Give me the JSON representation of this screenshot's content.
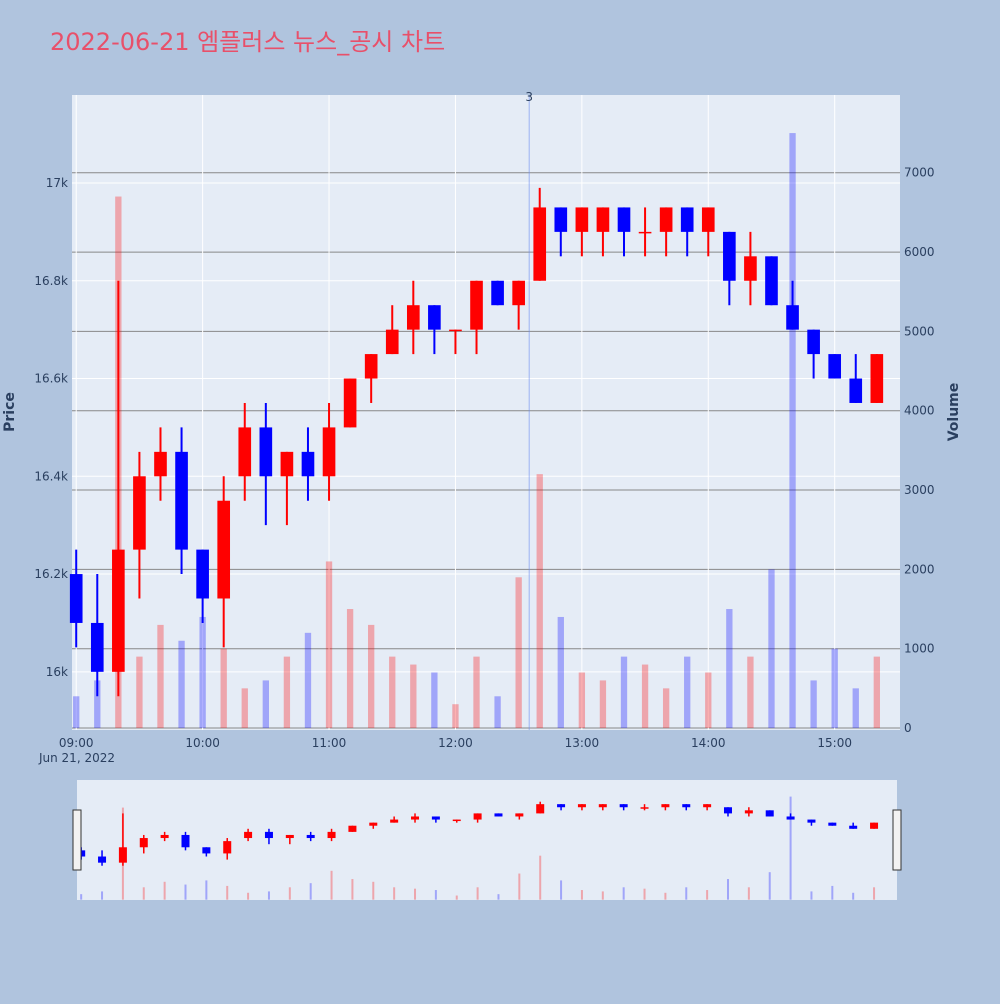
{
  "chart_data": {
    "type": "candlestick",
    "title": "2022-06-21 엠플러스 뉴스_공시 차트",
    "y_label": "Price",
    "y2_label": "Volume",
    "increasing_color": "#ff0000",
    "decreasing_color": "#0000ff",
    "x": [
      "09:00",
      "09:10",
      "09:20",
      "09:30",
      "09:40",
      "09:50",
      "10:00",
      "10:10",
      "10:20",
      "10:30",
      "10:40",
      "10:50",
      "11:00",
      "11:10",
      "11:20",
      "11:30",
      "11:40",
      "11:50",
      "12:00",
      "12:10",
      "12:20",
      "12:30",
      "12:40",
      "12:50",
      "13:00",
      "13:10",
      "13:20",
      "13:30",
      "13:40",
      "13:50",
      "14:00",
      "14:10",
      "14:20",
      "14:30",
      "14:40",
      "14:50",
      "15:00",
      "15:10",
      "15:20"
    ],
    "open": [
      16200,
      16100,
      16000,
      16250,
      16400,
      16450,
      16250,
      16150,
      16400,
      16500,
      16400,
      16450,
      16400,
      16500,
      16600,
      16650,
      16700,
      16750,
      16700,
      16700,
      16800,
      16750,
      16800,
      16950,
      16900,
      16900,
      16950,
      16900,
      16900,
      16950,
      16900,
      16900,
      16800,
      16850,
      16750,
      16700,
      16650,
      16600,
      16550
    ],
    "high": [
      16250,
      16200,
      16800,
      16450,
      16500,
      16500,
      16250,
      16400,
      16550,
      16550,
      16450,
      16500,
      16550,
      16600,
      16650,
      16750,
      16800,
      16750,
      16700,
      16800,
      16800,
      16800,
      16990,
      16950,
      16950,
      16950,
      16950,
      16950,
      16950,
      16950,
      16950,
      16900,
      16900,
      16850,
      16800,
      16700,
      16650,
      16650,
      16650
    ],
    "low": [
      16050,
      15950,
      15950,
      16150,
      16350,
      16200,
      16100,
      16050,
      16350,
      16300,
      16300,
      16350,
      16350,
      16500,
      16550,
      16650,
      16650,
      16650,
      16650,
      16650,
      16750,
      16700,
      16800,
      16850,
      16850,
      16850,
      16850,
      16850,
      16850,
      16850,
      16850,
      16750,
      16750,
      16750,
      16700,
      16600,
      16600,
      16550,
      16550
    ],
    "close": [
      16100,
      16000,
      16250,
      16400,
      16450,
      16250,
      16150,
      16350,
      16500,
      16400,
      16450,
      16400,
      16500,
      16600,
      16650,
      16700,
      16750,
      16700,
      16700,
      16800,
      16750,
      16800,
      16950,
      16900,
      16950,
      16950,
      16900,
      16900,
      16950,
      16900,
      16950,
      16800,
      16850,
      16750,
      16700,
      16650,
      16600,
      16550,
      16650
    ],
    "volume": [
      400,
      600,
      6700,
      900,
      1300,
      1100,
      1400,
      1000,
      500,
      600,
      900,
      1200,
      2100,
      1500,
      1300,
      900,
      800,
      700,
      300,
      900,
      400,
      1900,
      3200,
      1400,
      700,
      600,
      900,
      800,
      500,
      900,
      700,
      1500,
      900,
      2000,
      7500,
      600,
      1000,
      500,
      900
    ],
    "xlim": [
      "08:58",
      "15:31"
    ],
    "xticks": [
      "09:00",
      "10:00",
      "11:00",
      "12:00",
      "13:00",
      "14:00",
      "15:00"
    ],
    "date_label": "Jun 21, 2022",
    "ylim": [
      15881,
      17180
    ],
    "yticks": [
      {
        "value": 16000,
        "label": "16k"
      },
      {
        "value": 16200,
        "label": "16.2k"
      },
      {
        "value": 16400,
        "label": "16.4k"
      },
      {
        "value": 16600,
        "label": "16.6k"
      },
      {
        "value": 16800,
        "label": "16.8k"
      },
      {
        "value": 17000,
        "label": "17k"
      }
    ],
    "y2lim": [
      -25,
      7980
    ],
    "y2ticks": [
      0,
      1000,
      2000,
      3000,
      4000,
      5000,
      6000,
      7000
    ],
    "annotation": {
      "x": "12:35",
      "text": "3"
    }
  }
}
